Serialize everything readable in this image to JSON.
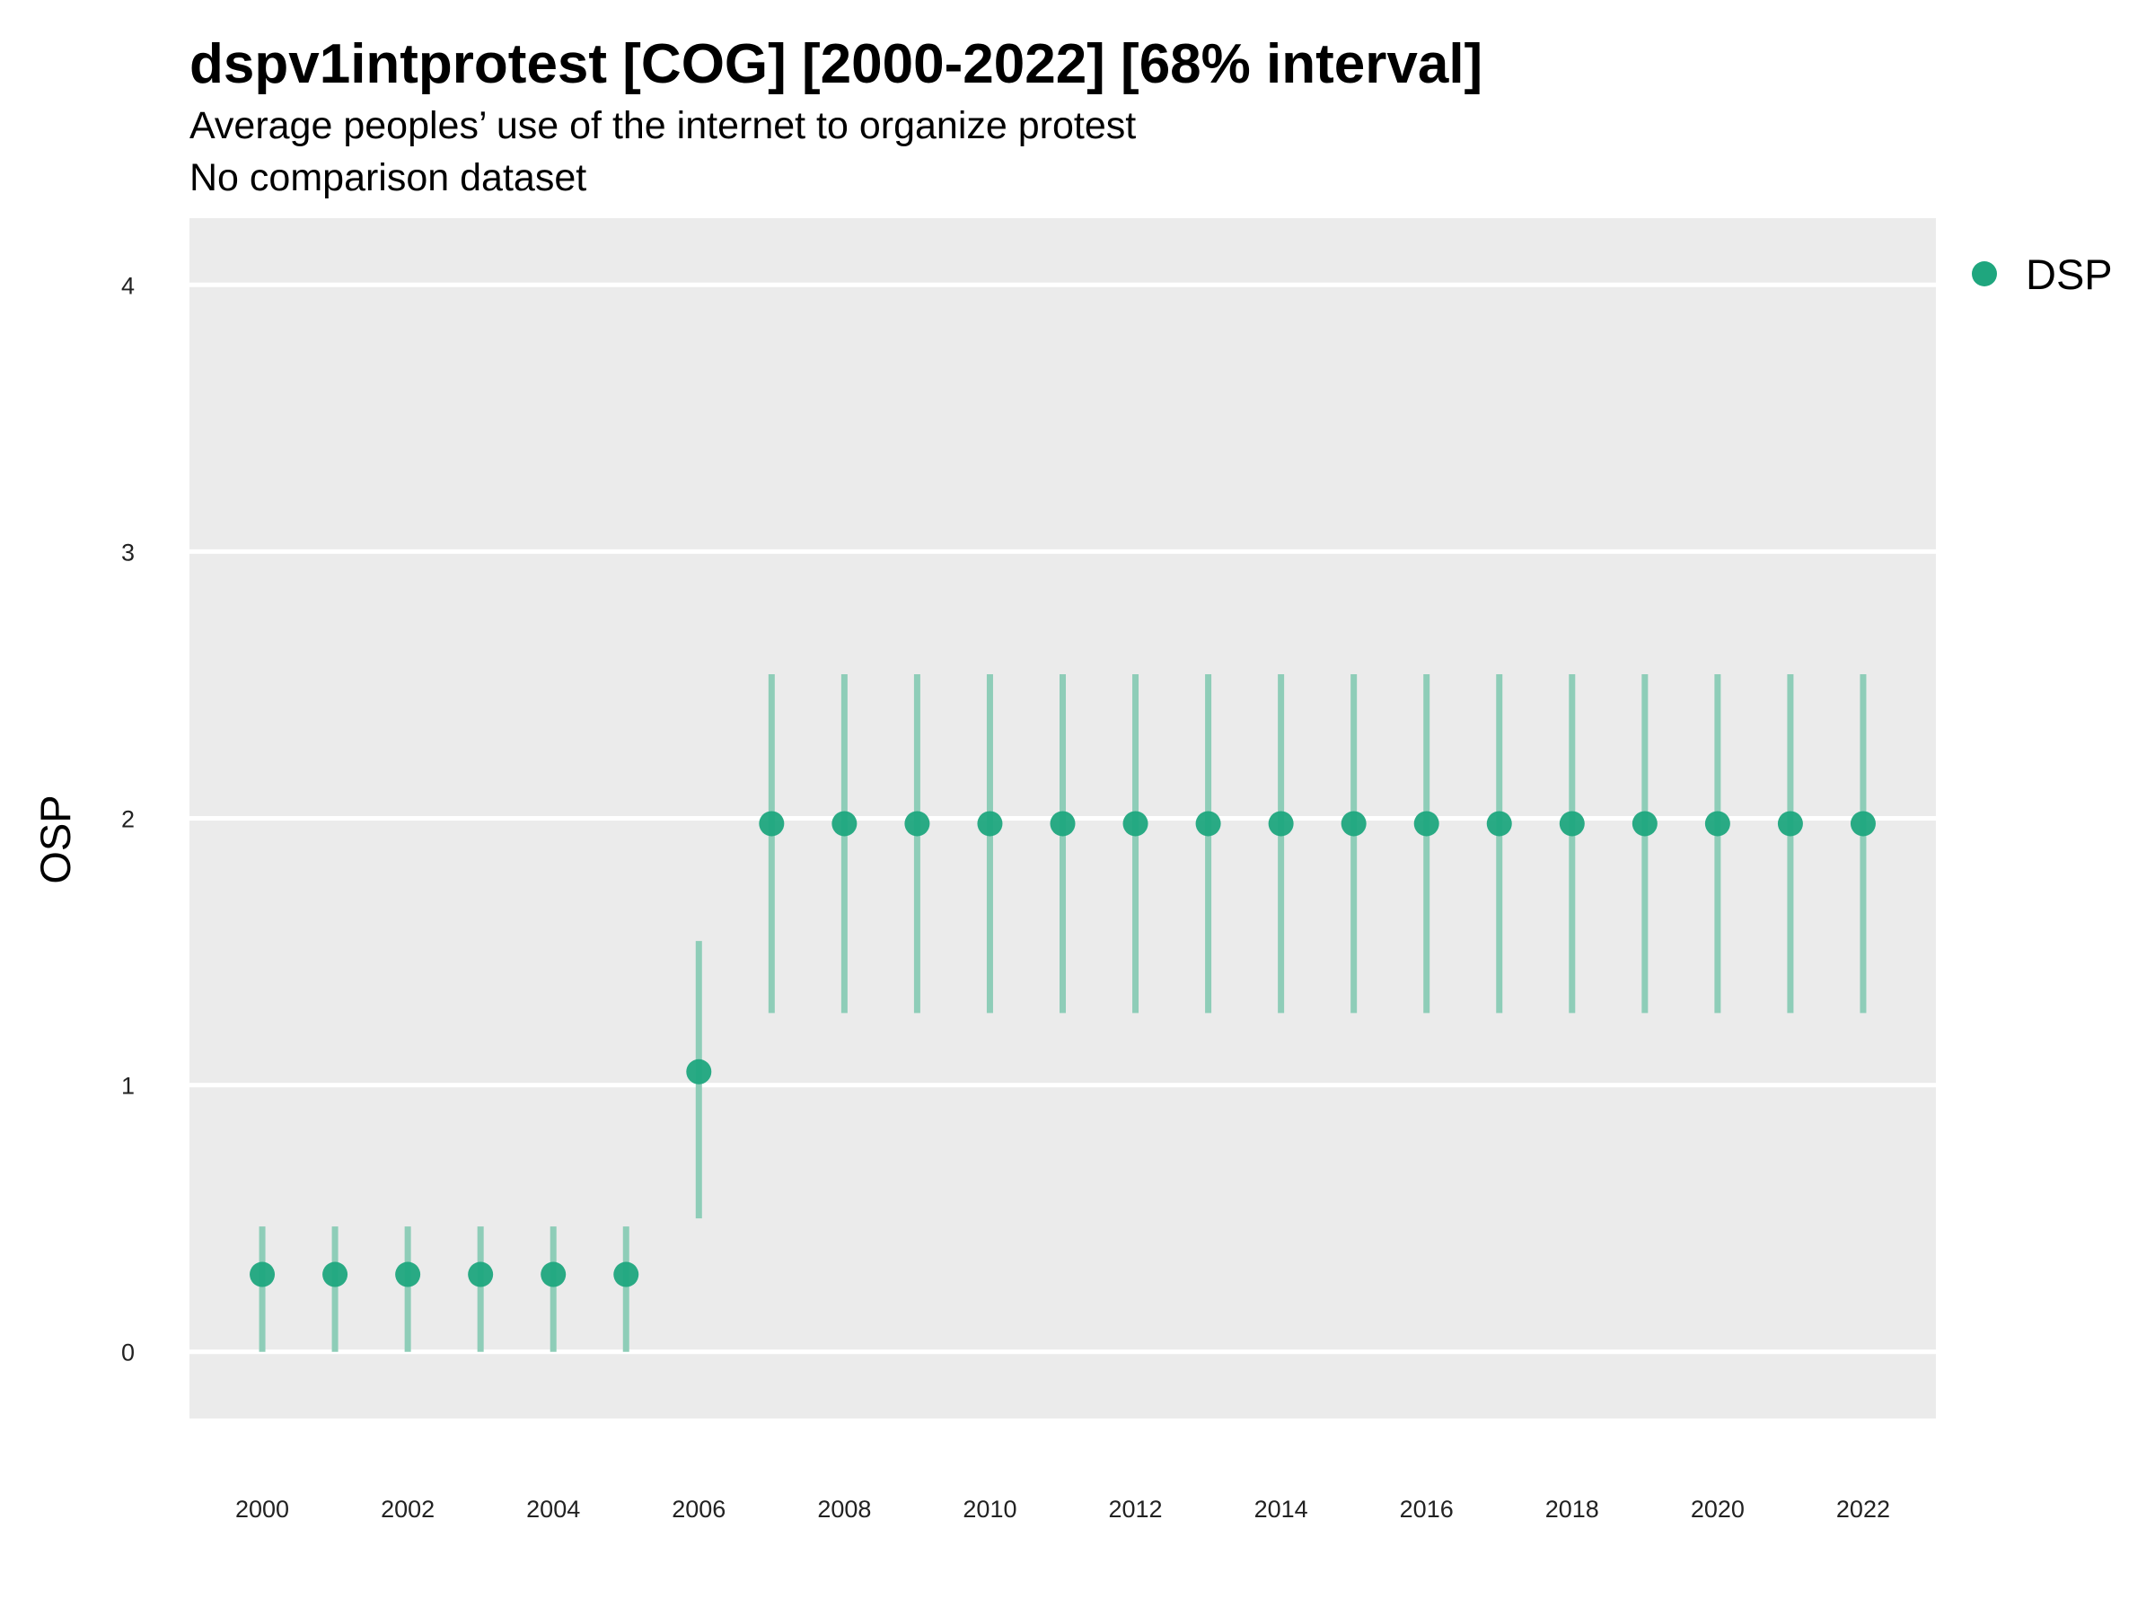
{
  "header": {
    "title": "dspv1intprotest [COG] [2000-2022] [68% interval]",
    "subtitle": "Average peoples’ use of the internet to organize protest",
    "subtitle2": "No comparison dataset"
  },
  "chart_data": {
    "type": "scatter",
    "title": "dspv1intprotest [COG] [2000-2022] [68% interval]",
    "subtitle": "Average peoples’ use of the internet to organize protest",
    "xlabel": "",
    "ylabel": "OSP",
    "xlim": [
      1999,
      2023
    ],
    "ylim": [
      -0.25,
      4.25
    ],
    "yticks": [
      0,
      1,
      2,
      3,
      4
    ],
    "xticks": [
      2000,
      2002,
      2004,
      2006,
      2008,
      2010,
      2012,
      2014,
      2016,
      2018,
      2020,
      2022
    ],
    "grid": true,
    "legend_position": "right",
    "series": [
      {
        "name": "DSP",
        "color": "#1FA67E",
        "interval_color": "#8ECDB8",
        "points": [
          {
            "x": 2000,
            "y": 0.29,
            "low": 0.0,
            "high": 0.47
          },
          {
            "x": 2001,
            "y": 0.29,
            "low": 0.0,
            "high": 0.47
          },
          {
            "x": 2002,
            "y": 0.29,
            "low": 0.0,
            "high": 0.47
          },
          {
            "x": 2003,
            "y": 0.29,
            "low": 0.0,
            "high": 0.47
          },
          {
            "x": 2004,
            "y": 0.29,
            "low": 0.0,
            "high": 0.47
          },
          {
            "x": 2005,
            "y": 0.29,
            "low": 0.0,
            "high": 0.47
          },
          {
            "x": 2006,
            "y": 1.05,
            "low": 0.5,
            "high": 1.54
          },
          {
            "x": 2007,
            "y": 1.98,
            "low": 1.27,
            "high": 2.54
          },
          {
            "x": 2008,
            "y": 1.98,
            "low": 1.27,
            "high": 2.54
          },
          {
            "x": 2009,
            "y": 1.98,
            "low": 1.27,
            "high": 2.54
          },
          {
            "x": 2010,
            "y": 1.98,
            "low": 1.27,
            "high": 2.54
          },
          {
            "x": 2011,
            "y": 1.98,
            "low": 1.27,
            "high": 2.54
          },
          {
            "x": 2012,
            "y": 1.98,
            "low": 1.27,
            "high": 2.54
          },
          {
            "x": 2013,
            "y": 1.98,
            "low": 1.27,
            "high": 2.54
          },
          {
            "x": 2014,
            "y": 1.98,
            "low": 1.27,
            "high": 2.54
          },
          {
            "x": 2015,
            "y": 1.98,
            "low": 1.27,
            "high": 2.54
          },
          {
            "x": 2016,
            "y": 1.98,
            "low": 1.27,
            "high": 2.54
          },
          {
            "x": 2017,
            "y": 1.98,
            "low": 1.27,
            "high": 2.54
          },
          {
            "x": 2018,
            "y": 1.98,
            "low": 1.27,
            "high": 2.54
          },
          {
            "x": 2019,
            "y": 1.98,
            "low": 1.27,
            "high": 2.54
          },
          {
            "x": 2020,
            "y": 1.98,
            "low": 1.27,
            "high": 2.54
          },
          {
            "x": 2021,
            "y": 1.98,
            "low": 1.27,
            "high": 2.54
          },
          {
            "x": 2022,
            "y": 1.98,
            "low": 1.27,
            "high": 2.54
          }
        ]
      }
    ],
    "panel_color": "#EBEBEB",
    "gridline_color": "#FFFFFF"
  }
}
